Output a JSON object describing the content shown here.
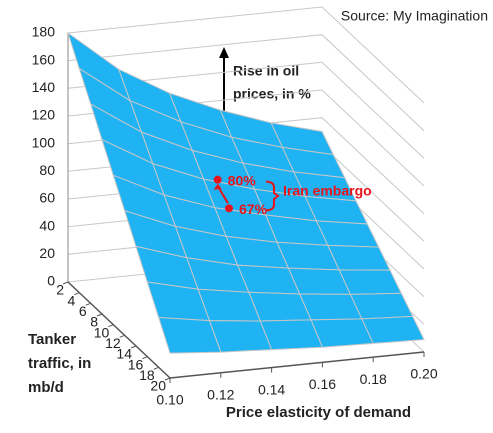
{
  "chart_data": {
    "type": "surface",
    "source": "Source: My Imagination",
    "zlabel_lines": [
      "Rise in oil",
      "prices, in %"
    ],
    "ylabel_lines": [
      "Tanker",
      "traffic, in",
      "mb/d"
    ],
    "xlabel": "Price elasticity of demand",
    "x": [
      0.1,
      0.12,
      0.14,
      0.16,
      0.18,
      0.2
    ],
    "y": [
      2,
      4,
      6,
      8,
      10,
      12,
      14,
      16,
      18,
      20
    ],
    "values": [
      [
        180,
        150,
        129,
        113,
        100,
        90
      ],
      [
        162,
        135,
        116,
        101,
        90,
        81
      ],
      [
        144,
        120,
        103,
        90,
        80,
        72
      ],
      [
        126,
        105,
        90,
        79,
        70,
        63
      ],
      [
        108,
        90,
        77,
        68,
        60,
        54
      ],
      [
        90,
        75,
        64,
        56,
        50,
        45
      ],
      [
        72,
        60,
        51,
        45,
        40,
        36
      ],
      [
        54,
        45,
        39,
        34,
        30,
        27
      ],
      [
        36,
        30,
        26,
        23,
        20,
        18
      ],
      [
        18,
        15,
        13,
        11,
        10,
        9
      ]
    ],
    "color": "#1fb3f3",
    "xlim": [
      0.1,
      0.2
    ],
    "xticks": [
      {
        "value": 0.1,
        "label": "0.10"
      },
      {
        "value": 0.12,
        "label": "0.12"
      },
      {
        "value": 0.14,
        "label": "0.14"
      },
      {
        "value": 0.16,
        "label": "0.16"
      },
      {
        "value": 0.18,
        "label": "0.18"
      },
      {
        "value": 0.2,
        "label": "0.20"
      }
    ],
    "ylim": [
      2,
      20
    ],
    "yticks": [
      2,
      4,
      6,
      8,
      10,
      12,
      14,
      16,
      18,
      20
    ],
    "zlim": [
      0,
      180
    ],
    "zticks": [
      0,
      20,
      40,
      60,
      80,
      100,
      120,
      140,
      160,
      180
    ],
    "grid": true,
    "points": [
      {
        "label": "80%",
        "value": 80,
        "x": 0.15,
        "y": 6
      },
      {
        "label": "67%",
        "value": 67,
        "x": 0.15,
        "y": 8
      }
    ],
    "points_color": "#e8141b",
    "annotation": "Iran embargo"
  }
}
